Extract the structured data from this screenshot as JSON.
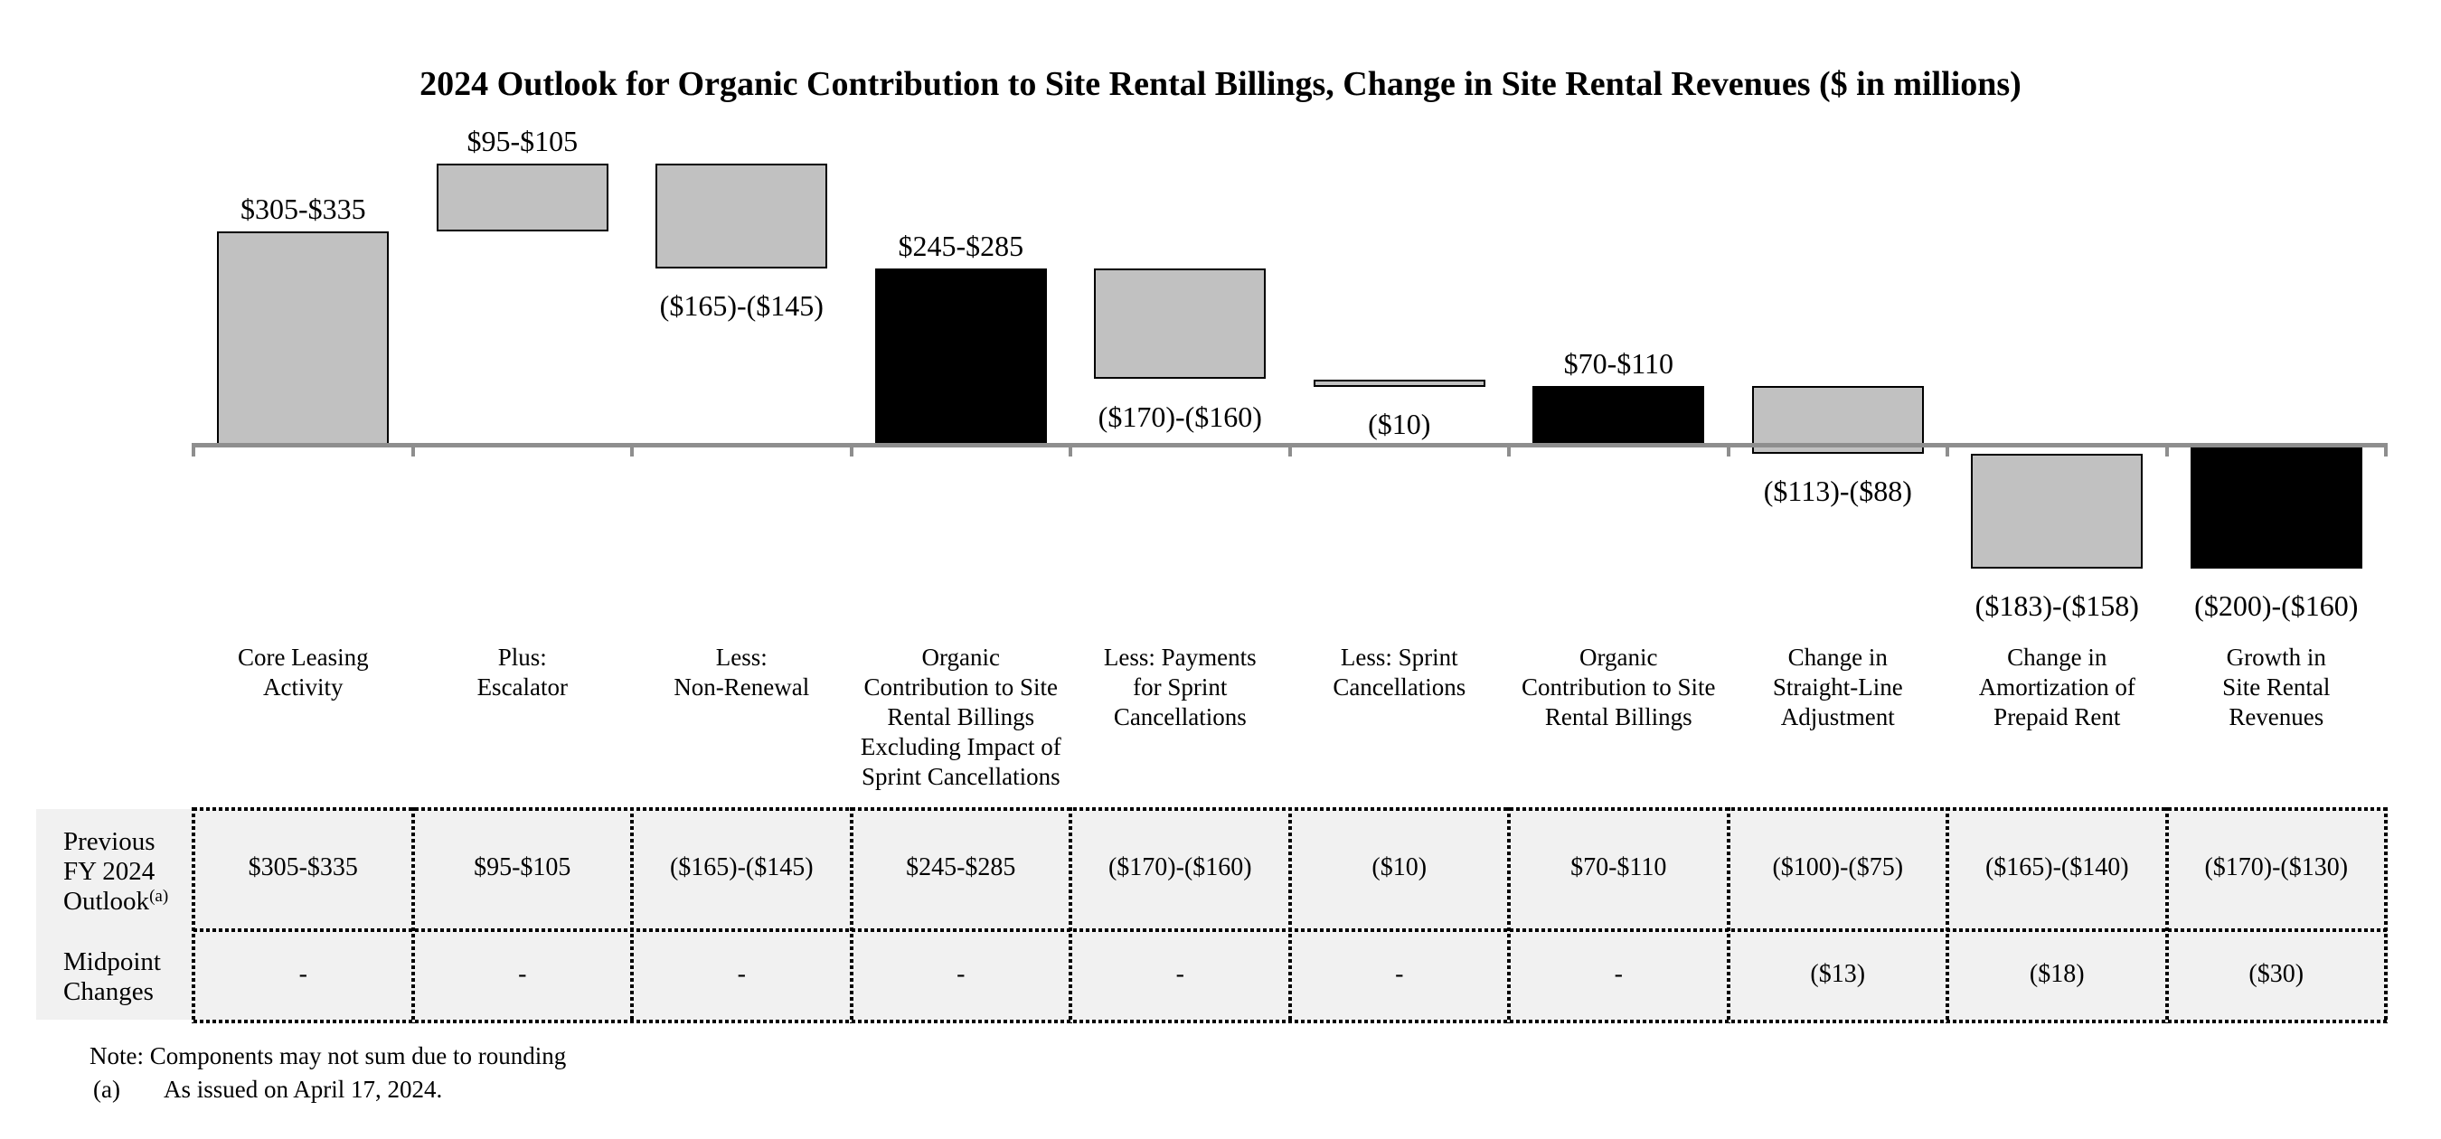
{
  "title": "2024 Outlook for Organic Contribution to Site Rental Billings, Change in Site Rental Revenues ($ in millions)",
  "chart_data": {
    "type": "waterfall",
    "title": "2024 Outlook for Organic Contribution to Site Rental Billings, Change in Site Rental Revenues",
    "unit": "$ in millions",
    "y_axis_visible": false,
    "legend": "none",
    "categories": [
      "Core Leasing\nActivity",
      "Plus:\nEscalator",
      "Less:\nNon-Renewal",
      "Organic\nContribution to Site\nRental Billings\nExcluding Impact of\nSprint Cancellations",
      "Less: Payments\nfor Sprint\nCancellations",
      "Less: Sprint\nCancellations",
      "Organic\nContribution to Site\nRental Billings",
      "Change in\nStraight-Line\nAdjustment",
      "Change in\nAmortization of\nPrepaid Rent",
      "Growth in\nSite Rental\nRevenues"
    ],
    "steps": [
      {
        "label": "$305-$335",
        "range_low": 305,
        "range_high": 335,
        "cum_from": 0,
        "cum_to": 320,
        "color": "gray",
        "kind": "increase",
        "label_position": "above"
      },
      {
        "label": "$95-$105",
        "range_low": 95,
        "range_high": 105,
        "cum_from": 320,
        "cum_to": 420,
        "color": "gray",
        "kind": "increase",
        "label_position": "above"
      },
      {
        "label": "($165)-($145)",
        "range_low": -165,
        "range_high": -145,
        "cum_from": 420,
        "cum_to": 265,
        "color": "gray",
        "kind": "decrease",
        "label_position": "below"
      },
      {
        "label": "$245-$285",
        "range_low": 245,
        "range_high": 285,
        "cum_from": 0,
        "cum_to": 265,
        "color": "black",
        "kind": "subtotal",
        "label_position": "above"
      },
      {
        "label": "($170)-($160)",
        "range_low": -170,
        "range_high": -160,
        "cum_from": 265,
        "cum_to": 100,
        "color": "gray",
        "kind": "decrease",
        "label_position": "below"
      },
      {
        "label": "($10)",
        "range_low": -10,
        "range_high": -10,
        "cum_from": 100,
        "cum_to": 90,
        "color": "gray",
        "kind": "decrease",
        "label_position": "below"
      },
      {
        "label": "$70-$110",
        "range_low": 70,
        "range_high": 110,
        "cum_from": 0,
        "cum_to": 90,
        "color": "black",
        "kind": "subtotal",
        "label_position": "above"
      },
      {
        "label": "($113)-($88)",
        "range_low": -113,
        "range_high": -88,
        "cum_from": 90,
        "cum_to": -10.5,
        "color": "gray",
        "kind": "decrease",
        "label_position": "below"
      },
      {
        "label": "($183)-($158)",
        "range_low": -183,
        "range_high": -158,
        "cum_from": -10.5,
        "cum_to": -181,
        "color": "gray",
        "kind": "decrease",
        "label_position": "below"
      },
      {
        "label": "($200)-($160)",
        "range_low": -200,
        "range_high": -160,
        "cum_from": 0,
        "cum_to": -181,
        "color": "black",
        "kind": "total",
        "label_position": "below"
      }
    ]
  },
  "table": {
    "row_headers": [
      {
        "label": "Previous\nFY 2024\nOutlook",
        "superscript": "(a)"
      },
      {
        "label": "Midpoint\nChanges",
        "superscript": ""
      }
    ],
    "rows": [
      {
        "cells": [
          "$305-$335",
          "$95-$105",
          "($165)-($145)",
          "$245-$285",
          "($170)-($160)",
          "($10)",
          "$70-$110",
          "($100)-($75)",
          "($165)-($140)",
          "($170)-($130)"
        ]
      },
      {
        "cells": [
          "-",
          "-",
          "-",
          "-",
          "-",
          "-",
          "-",
          "($13)",
          "($18)",
          "($30)"
        ]
      }
    ]
  },
  "notes": {
    "line1": "Note: Components may not sum due to rounding",
    "footnote_marker": "(a)",
    "footnote_text": "As issued on April 17, 2024."
  },
  "colors": {
    "bar_gray": "#C1C1C1",
    "bar_black": "#000000",
    "bar_border": "#000000",
    "axis_line": "#8E8E8E",
    "table_background": "#F1F1F1",
    "dotted_border": "#000000",
    "text": "#000000",
    "page_background": "#FFFFFF"
  }
}
